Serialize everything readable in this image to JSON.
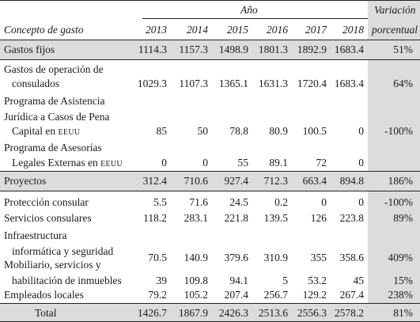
{
  "header": {
    "year_label": "Año",
    "concept_label": "Concepto de gasto",
    "years": [
      "2013",
      "2014",
      "2015",
      "2016",
      "2017",
      "2018"
    ],
    "variation_line1": "Variación",
    "variation_line2": "porcentual"
  },
  "rows": [
    {
      "lines": [
        "Gastos fijos"
      ],
      "values": [
        "1114.3",
        "1157.3",
        "1498.9",
        "1801.3",
        "1892.9",
        "1683.4"
      ],
      "pct": "51%"
    },
    {
      "lines": [
        "Gastos de operación de",
        "consulados"
      ],
      "values": [
        "1029.3",
        "1107.3",
        "1365.1",
        "1631.3",
        "1720.4",
        "1683.4"
      ],
      "pct": "64%"
    },
    {
      "lines": [
        "Programa de Asistencia",
        "Jurídica a Casos de Pena",
        "Capital en",
        "EEUU"
      ],
      "values": [
        "85",
        "50",
        "78.8",
        "80.9",
        "100.5",
        "0"
      ],
      "pct": "-100%"
    },
    {
      "lines": [
        "Programa de Asesorías",
        "Legales Externas en",
        "EEUU"
      ],
      "values": [
        "0",
        "0",
        "55",
        "89.1",
        "72",
        "0"
      ],
      "pct": ""
    },
    {
      "lines": [
        "Proyectos"
      ],
      "values": [
        "312.4",
        "710.6",
        "927.4",
        "712.3",
        "663.4",
        "894.8"
      ],
      "pct": "186%"
    },
    {
      "lines": [
        "Protección consular"
      ],
      "values": [
        "5.5",
        "71.6",
        "24.5",
        "0.2",
        "0",
        "0"
      ],
      "pct": "-100%"
    },
    {
      "lines": [
        "Servicios consulares"
      ],
      "values": [
        "118.2",
        "283.1",
        "221.8",
        "139.5",
        "126",
        "223.8"
      ],
      "pct": "89%"
    },
    {
      "lines": [
        "Infraestructura",
        "informática y seguridad"
      ],
      "values": [
        "70.5",
        "140.9",
        "379.6",
        "310.9",
        "355",
        "358.6"
      ],
      "pct": "409%"
    },
    {
      "lines": [
        "Mobiliario, servicios y",
        "habilitación de inmuebles"
      ],
      "values": [
        "39",
        "109.8",
        "94.1",
        "5",
        "53.2",
        "45"
      ],
      "pct": "15%"
    },
    {
      "lines": [
        "Empleados locales"
      ],
      "values": [
        "79.2",
        "105.2",
        "207.4",
        "256.7",
        "129.2",
        "267.4"
      ],
      "pct": "238%"
    },
    {
      "lines": [
        "Total"
      ],
      "values": [
        "1426.7",
        "1867.9",
        "2426.3",
        "2513.6",
        "2556.3",
        "2578.2"
      ],
      "pct": "81%"
    }
  ]
}
